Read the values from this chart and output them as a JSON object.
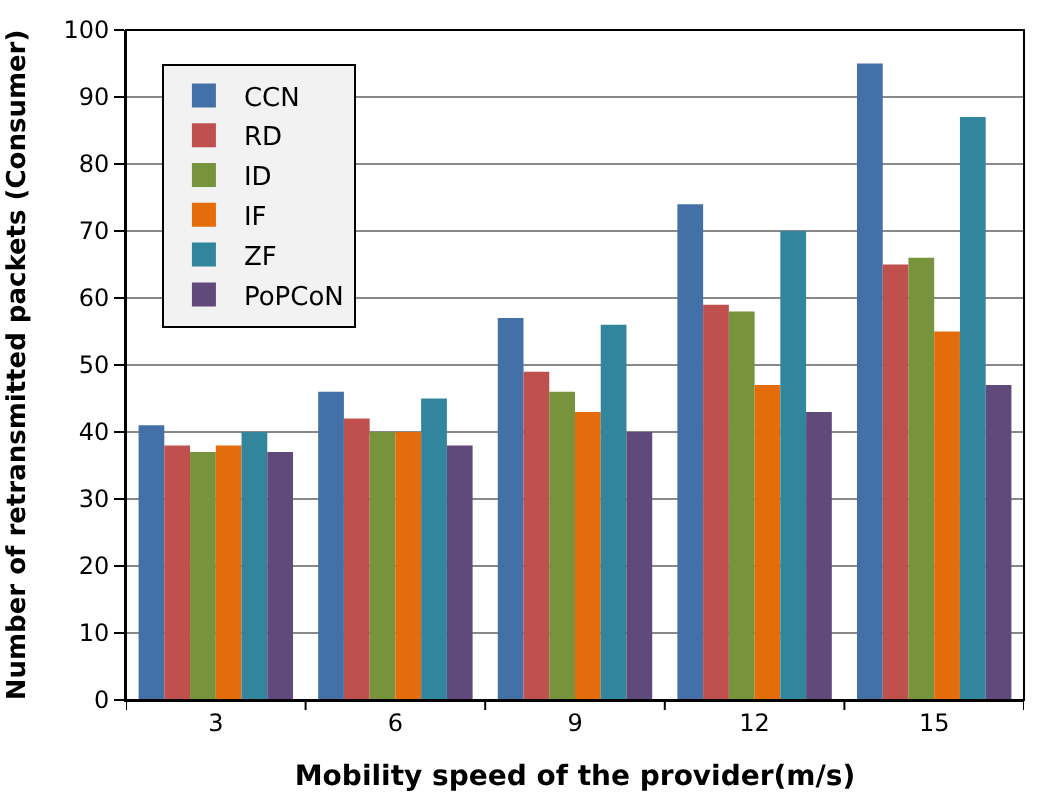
{
  "chart_data": {
    "type": "bar",
    "xlabel": "Mobility speed of the provider(m/s)",
    "ylabel": "Number of retransmitted packets (Consumer)",
    "categories": [
      "3",
      "6",
      "9",
      "12",
      "15"
    ],
    "series": [
      {
        "name": "CCN",
        "color": "#4470a8",
        "values": [
          41,
          46,
          57,
          74,
          95
        ]
      },
      {
        "name": "RD",
        "color": "#c0504d",
        "values": [
          38,
          42,
          49,
          59,
          65
        ]
      },
      {
        "name": "ID",
        "color": "#77933c",
        "values": [
          37,
          40,
          46,
          58,
          66
        ]
      },
      {
        "name": "IF",
        "color": "#e46c0a",
        "values": [
          38,
          40,
          43,
          47,
          55
        ]
      },
      {
        "name": "ZF",
        "color": "#31859c",
        "values": [
          40,
          45,
          56,
          70,
          87
        ]
      },
      {
        "name": "PoPCoN",
        "color": "#604a7b",
        "values": [
          37,
          38,
          40,
          43,
          47
        ]
      }
    ],
    "ylim": [
      0,
      100
    ],
    "yticks": [
      0,
      10,
      20,
      30,
      40,
      50,
      60,
      70,
      80,
      90,
      100
    ],
    "grid": "y",
    "legend": "top left"
  }
}
